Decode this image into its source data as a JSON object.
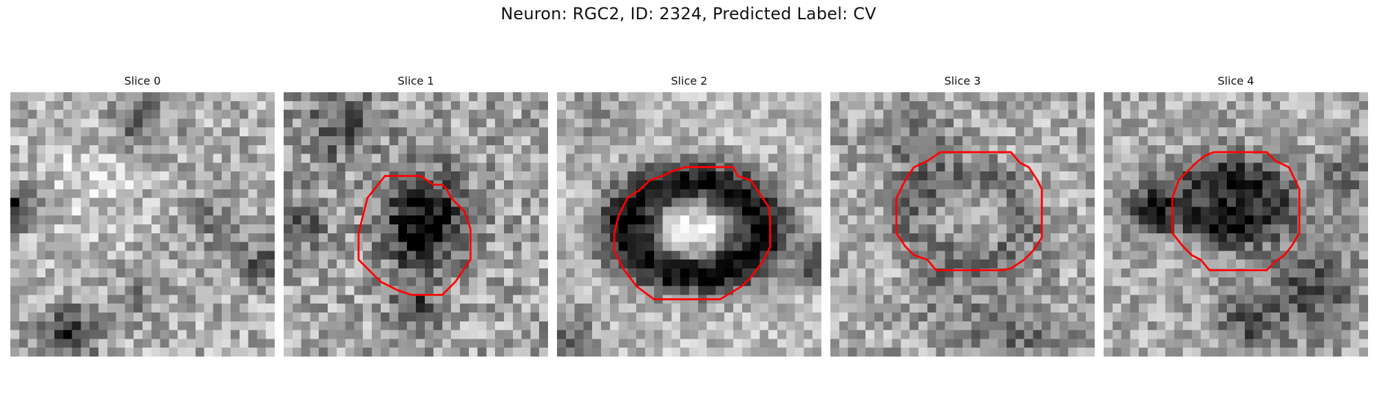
{
  "figure": {
    "title": "Neuron: RGC2, ID: 2324, Predicted Label: CV"
  },
  "panels": [
    {
      "title": "Slice 0",
      "contour": false
    },
    {
      "title": "Slice 1",
      "contour": true
    },
    {
      "title": "Slice 2",
      "contour": true
    },
    {
      "title": "Slice 3",
      "contour": true
    },
    {
      "title": "Slice 4",
      "contour": true
    }
  ],
  "colors": {
    "contour": "#ff0000",
    "background": "#ffffff"
  }
}
